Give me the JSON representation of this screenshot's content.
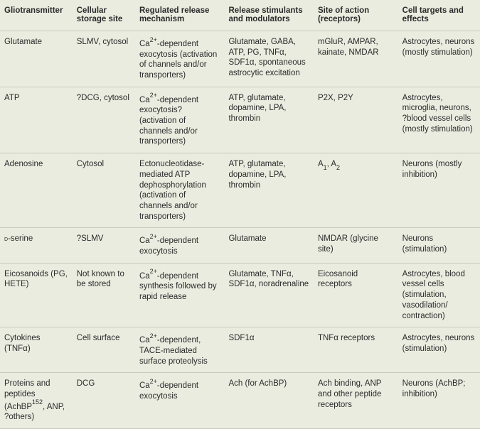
{
  "table": {
    "background_color": "#ebece0",
    "border_color": "#c9cab8",
    "font_family": "Arial",
    "font_size_pt": 8.5,
    "text_color": "#2b2b2b",
    "column_widths_pct": [
      15,
      13,
      18.5,
      18.5,
      17.5,
      17
    ],
    "columns": [
      "Gliotransmitter",
      "Cellular storage site",
      "Regulated release mechanism",
      "Release stimulants and modulators",
      "Site of action (receptors)",
      "Cell targets and effects"
    ],
    "rows": [
      {
        "c0": "Glutamate",
        "c1": "SLMV, cytosol",
        "c2": "Ca<span class='sup'>2+</span>-dependent exocytosis (activation of channels and/or transporters)",
        "c3": "Glutamate, GABA, ATP, PG, TNFα, SDF1α, spontaneous astrocytic excitation",
        "c4": "mGluR, AMPAR, kainate, NMDAR",
        "c5": "Astrocytes, neurons (mostly stimulation)"
      },
      {
        "c0": "ATP",
        "c1": "?DCG, cytosol",
        "c2": "Ca<span class='sup'>2+</span>-dependent exocytosis? (activation of channels and/or transporters)",
        "c3": "ATP, glutamate, dopamine, LPA, thrombin",
        "c4": "P2X, P2Y",
        "c5": "Astrocytes, microglia, neurons, ?blood vessel cells (mostly stimulation)"
      },
      {
        "c0": "Adenosine",
        "c1": "Cytosol",
        "c2": "Ectonucleotidase-mediated ATP dephosphorylation (activation of channels and/or transporters)",
        "c3": "ATP, glutamate, dopamine, LPA, thrombin",
        "c4": "A<span class='sub'>1</span>, A<span class='sub'>2</span>",
        "c5": "Neurons (mostly inhibition)"
      },
      {
        "c0": "<span class='sc'>d</span>-serine",
        "c1": "?SLMV",
        "c2": "Ca<span class='sup'>2+</span>-dependent exocytosis",
        "c3": "Glutamate",
        "c4": "NMDAR (glycine site)",
        "c5": "Neurons (stimulation)"
      },
      {
        "c0": "Eicosanoids (PG, HETE)",
        "c1": "Not known to be stored",
        "c2": "Ca<span class='sup'>2+</span>-dependent synthesis followed by rapid release",
        "c3": "Glutamate, TNFα, SDF1α, noradrenaline",
        "c4": "Eicosanoid receptors",
        "c5": "Astrocytes, blood vessel cells (stimulation, vasodilation/ contraction)"
      },
      {
        "c0": "Cytokines (TNFα)",
        "c1": "Cell surface",
        "c2": "Ca<span class='sup'>2+</span>-dependent, TACE-mediated surface proteolysis",
        "c3": "SDF1α",
        "c4": "TNFα receptors",
        "c5": "Astrocytes, neurons (stimulation)"
      },
      {
        "c0": "Proteins and peptides (AchBP<span class='sup'>152</span>, ANP, ?others)",
        "c1": "DCG",
        "c2": "Ca<span class='sup'>2+</span>-dependent exocytosis",
        "c3": "Ach (for AchBP)",
        "c4": "Ach binding, ANP and other peptide receptors",
        "c5": "Neurons (AchBP; inhibition)"
      }
    ]
  }
}
